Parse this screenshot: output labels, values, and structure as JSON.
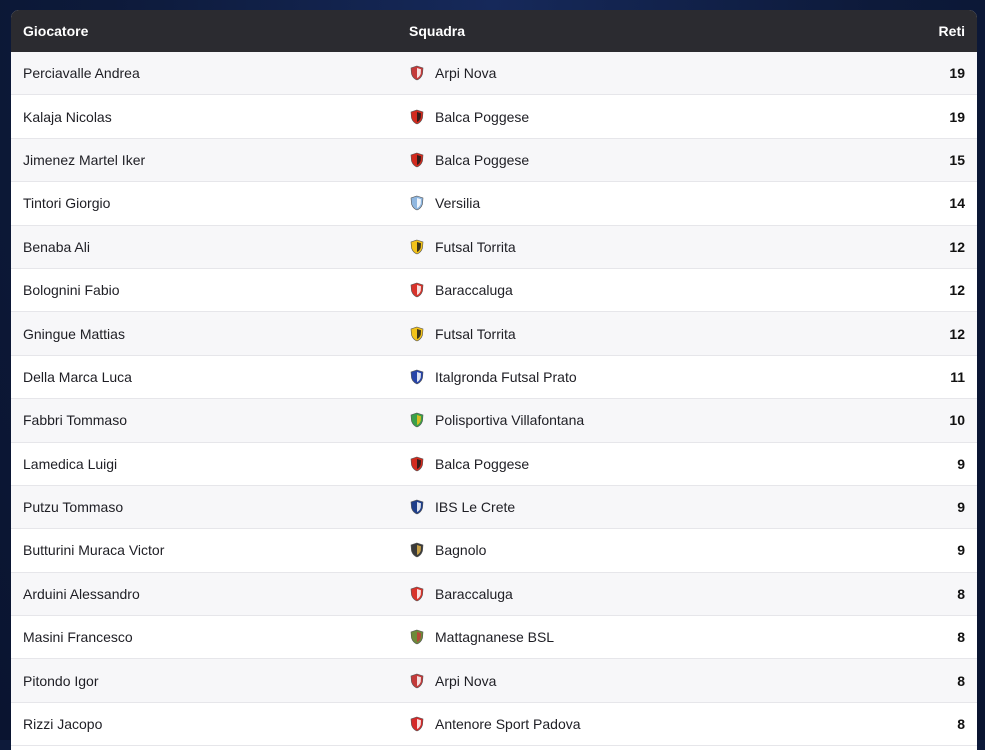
{
  "header": {
    "player": "Giocatore",
    "team": "Squadra",
    "goals": "Reti"
  },
  "rows": [
    {
      "player": "Perciavalle Andrea",
      "team": "Arpi Nova",
      "goals": "19",
      "crest": "arpi-nova-crest-icon",
      "c1": "#c43a3a",
      "c2": "#ffffff"
    },
    {
      "player": "Kalaja Nicolas",
      "team": "Balca Poggese",
      "goals": "19",
      "crest": "balca-poggese-crest-icon",
      "c1": "#d22a1e",
      "c2": "#1a1a1a"
    },
    {
      "player": "Jimenez Martel Iker",
      "team": "Balca Poggese",
      "goals": "15",
      "crest": "balca-poggese-crest-icon",
      "c1": "#d22a1e",
      "c2": "#1a1a1a"
    },
    {
      "player": "Tintori Giorgio",
      "team": "Versilia",
      "goals": "14",
      "crest": "versilia-crest-icon",
      "c1": "#8fb7e0",
      "c2": "#ffffff"
    },
    {
      "player": "Benaba Ali",
      "team": "Futsal Torrita",
      "goals": "12",
      "crest": "futsal-torrita-crest-icon",
      "c1": "#f2c21a",
      "c2": "#1a1a1a"
    },
    {
      "player": "Bolognini Fabio",
      "team": "Baraccaluga",
      "goals": "12",
      "crest": "baraccaluga-crest-icon",
      "c1": "#d8332b",
      "c2": "#ffffff"
    },
    {
      "player": "Gningue Mattias",
      "team": "Futsal Torrita",
      "goals": "12",
      "crest": "futsal-torrita-crest-icon",
      "c1": "#f2c21a",
      "c2": "#1a1a1a"
    },
    {
      "player": "Della Marca Luca",
      "team": "Italgronda Futsal Prato",
      "goals": "11",
      "crest": "italgronda-crest-icon",
      "c1": "#2744a8",
      "c2": "#ffffff"
    },
    {
      "player": "Fabbri Tommaso",
      "team": "Polisportiva Villafontana",
      "goals": "10",
      "crest": "villafontana-crest-icon",
      "c1": "#3aa04a",
      "c2": "#f2c21a"
    },
    {
      "player": "Lamedica Luigi",
      "team": "Balca Poggese",
      "goals": "9",
      "crest": "balca-poggese-crest-icon",
      "c1": "#d22a1e",
      "c2": "#1a1a1a"
    },
    {
      "player": "Putzu Tommaso",
      "team": "IBS Le Crete",
      "goals": "9",
      "crest": "ibs-le-crete-crest-icon",
      "c1": "#1e3e8a",
      "c2": "#ffffff"
    },
    {
      "player": "Butturini Muraca Victor",
      "team": "Bagnolo",
      "goals": "9",
      "crest": "bagnolo-crest-icon",
      "c1": "#3a3a3a",
      "c2": "#e0b34a"
    },
    {
      "player": "Arduini Alessandro",
      "team": "Baraccaluga",
      "goals": "8",
      "crest": "baraccaluga-crest-icon",
      "c1": "#d8332b",
      "c2": "#ffffff"
    },
    {
      "player": "Masini Francesco",
      "team": "Mattagnanese BSL",
      "goals": "8",
      "crest": "mattagnanese-crest-icon",
      "c1": "#6d8a3a",
      "c2": "#c43a3a"
    },
    {
      "player": "Pitondo Igor",
      "team": "Arpi Nova",
      "goals": "8",
      "crest": "arpi-nova-crest-icon",
      "c1": "#c43a3a",
      "c2": "#ffffff"
    },
    {
      "player": "Rizzi Jacopo",
      "team": "Antenore Sport Padova",
      "goals": "8",
      "crest": "antenore-crest-icon",
      "c1": "#d42a2a",
      "c2": "#ffffff"
    }
  ]
}
